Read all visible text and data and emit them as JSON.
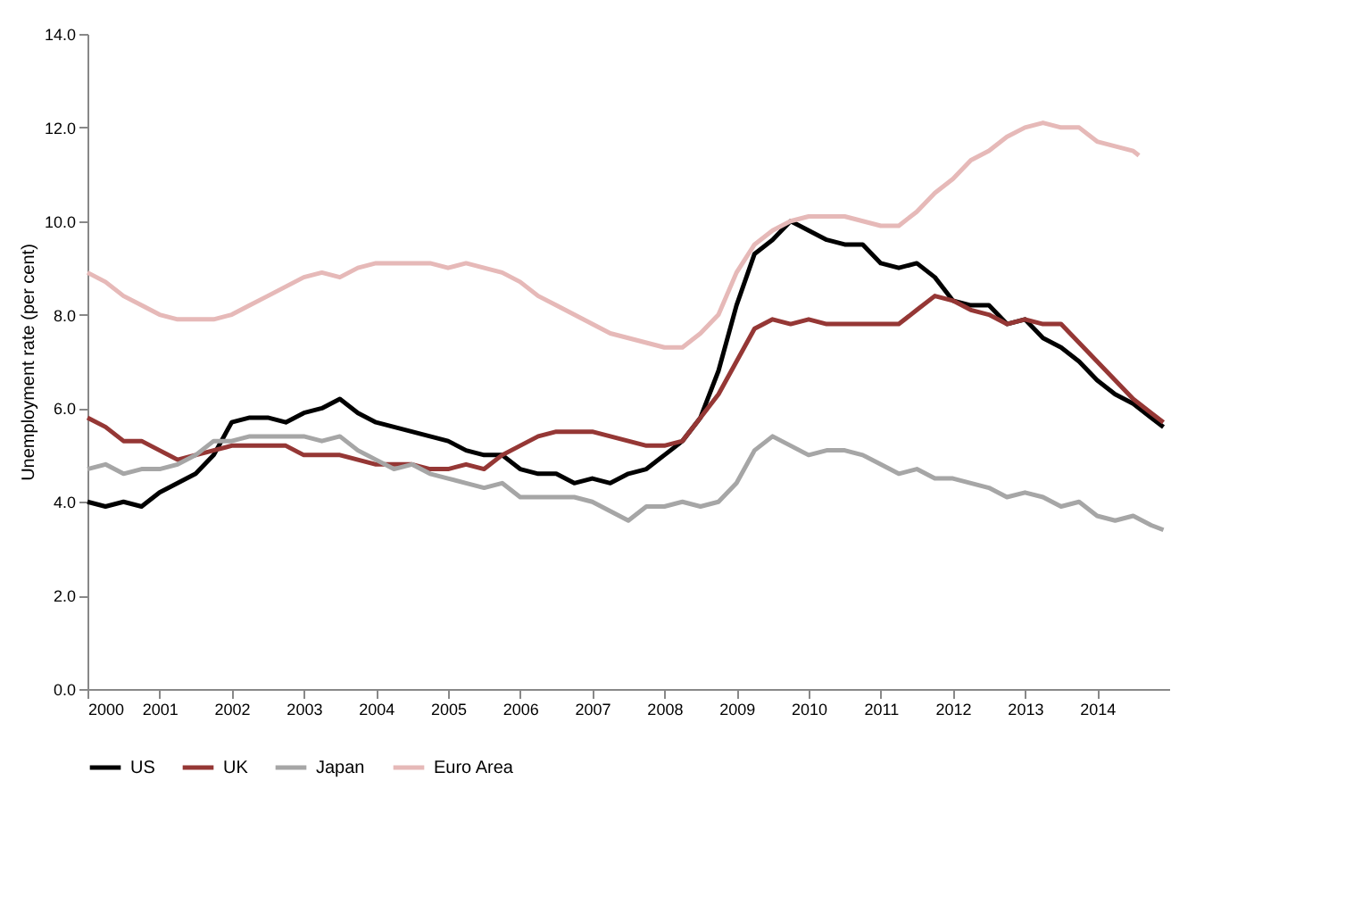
{
  "chart_data": {
    "type": "line",
    "ylabel": "Unemployment rate (per cent)",
    "xlim": [
      2000,
      2015
    ],
    "xticks": [
      2000,
      2001,
      2002,
      2003,
      2004,
      2005,
      2006,
      2007,
      2008,
      2009,
      2010,
      2011,
      2012,
      2013,
      2014
    ],
    "ylim": [
      0,
      14
    ],
    "yticks": [
      {
        "value": 0,
        "label": "0.0"
      },
      {
        "value": 2,
        "label": "2.0"
      },
      {
        "value": 4,
        "label": "4.0"
      },
      {
        "value": 6,
        "label": "6.0"
      },
      {
        "value": 8,
        "label": "8.0"
      },
      {
        "value": 10,
        "label": "10.0"
      },
      {
        "value": 12,
        "label": "12.0"
      },
      {
        "value": 14,
        "label": "14.0"
      }
    ],
    "grid": false,
    "legend": "bottom",
    "marker": "none",
    "line_style": "solid",
    "series": [
      {
        "name": "US",
        "color": "#000000",
        "x": [
          2000,
          2000.25,
          2000.5,
          2000.75,
          2001,
          2001.25,
          2001.5,
          2001.75,
          2002,
          2002.25,
          2002.5,
          2002.75,
          2003,
          2003.25,
          2003.5,
          2003.75,
          2004,
          2004.25,
          2004.5,
          2004.75,
          2005,
          2005.25,
          2005.5,
          2005.75,
          2006,
          2006.25,
          2006.5,
          2006.75,
          2007,
          2007.25,
          2007.5,
          2007.75,
          2008,
          2008.25,
          2008.5,
          2008.75,
          2009,
          2009.25,
          2009.5,
          2009.75,
          2010,
          2010.25,
          2010.5,
          2010.75,
          2011,
          2011.25,
          2011.5,
          2011.75,
          2012,
          2012.25,
          2012.5,
          2012.75,
          2013,
          2013.25,
          2013.5,
          2013.75,
          2014,
          2014.25,
          2014.5,
          2014.75,
          2014.92
        ],
        "values": [
          4.0,
          3.9,
          4.0,
          3.9,
          4.2,
          4.4,
          4.6,
          5.0,
          5.7,
          5.8,
          5.8,
          5.7,
          5.9,
          6.0,
          6.2,
          5.9,
          5.7,
          5.6,
          5.5,
          5.4,
          5.3,
          5.1,
          5.0,
          5.0,
          4.7,
          4.6,
          4.6,
          4.4,
          4.5,
          4.4,
          4.6,
          4.7,
          5.0,
          5.3,
          5.8,
          6.8,
          8.2,
          9.3,
          9.6,
          10.0,
          9.8,
          9.6,
          9.5,
          9.5,
          9.1,
          9.0,
          9.1,
          8.8,
          8.3,
          8.2,
          8.2,
          7.8,
          7.9,
          7.5,
          7.3,
          7.0,
          6.6,
          6.3,
          6.1,
          5.8,
          5.6
        ]
      },
      {
        "name": "UK",
        "color": "#953735",
        "x": [
          2000,
          2000.25,
          2000.5,
          2000.75,
          2001,
          2001.25,
          2001.5,
          2001.75,
          2002,
          2002.25,
          2002.5,
          2002.75,
          2003,
          2003.25,
          2003.5,
          2003.75,
          2004,
          2004.25,
          2004.5,
          2004.75,
          2005,
          2005.25,
          2005.5,
          2005.75,
          2006,
          2006.25,
          2006.5,
          2006.75,
          2007,
          2007.25,
          2007.5,
          2007.75,
          2008,
          2008.25,
          2008.5,
          2008.75,
          2009,
          2009.25,
          2009.5,
          2009.75,
          2010,
          2010.25,
          2010.5,
          2010.75,
          2011,
          2011.25,
          2011.5,
          2011.75,
          2012,
          2012.25,
          2012.5,
          2012.75,
          2013,
          2013.25,
          2013.5,
          2013.75,
          2014,
          2014.25,
          2014.5,
          2014.75,
          2014.92
        ],
        "values": [
          5.8,
          5.6,
          5.3,
          5.3,
          5.1,
          4.9,
          5.0,
          5.1,
          5.2,
          5.2,
          5.2,
          5.2,
          5.0,
          5.0,
          5.0,
          4.9,
          4.8,
          4.8,
          4.8,
          4.7,
          4.7,
          4.8,
          4.7,
          5.0,
          5.2,
          5.4,
          5.5,
          5.5,
          5.5,
          5.4,
          5.3,
          5.2,
          5.2,
          5.3,
          5.8,
          6.3,
          7.0,
          7.7,
          7.9,
          7.8,
          7.9,
          7.8,
          7.8,
          7.8,
          7.8,
          7.8,
          8.1,
          8.4,
          8.3,
          8.1,
          8.0,
          7.8,
          7.9,
          7.8,
          7.8,
          7.4,
          7.0,
          6.6,
          6.2,
          5.9,
          5.7
        ]
      },
      {
        "name": "Japan",
        "color": "#a6a6a6",
        "x": [
          2000,
          2000.25,
          2000.5,
          2000.75,
          2001,
          2001.25,
          2001.5,
          2001.75,
          2002,
          2002.25,
          2002.5,
          2002.75,
          2003,
          2003.25,
          2003.5,
          2003.75,
          2004,
          2004.25,
          2004.5,
          2004.75,
          2005,
          2005.25,
          2005.5,
          2005.75,
          2006,
          2006.25,
          2006.5,
          2006.75,
          2007,
          2007.25,
          2007.5,
          2007.75,
          2008,
          2008.25,
          2008.5,
          2008.75,
          2009,
          2009.25,
          2009.5,
          2009.75,
          2010,
          2010.25,
          2010.5,
          2010.75,
          2011,
          2011.25,
          2011.5,
          2011.75,
          2012,
          2012.25,
          2012.5,
          2012.75,
          2013,
          2013.25,
          2013.5,
          2013.75,
          2014,
          2014.25,
          2014.5,
          2014.75,
          2014.92
        ],
        "values": [
          4.7,
          4.8,
          4.6,
          4.7,
          4.7,
          4.8,
          5.0,
          5.3,
          5.3,
          5.4,
          5.4,
          5.4,
          5.4,
          5.3,
          5.4,
          5.1,
          4.9,
          4.7,
          4.8,
          4.6,
          4.5,
          4.4,
          4.3,
          4.4,
          4.1,
          4.1,
          4.1,
          4.1,
          4.0,
          3.8,
          3.6,
          3.9,
          3.9,
          4.0,
          3.9,
          4.0,
          4.4,
          5.1,
          5.4,
          5.2,
          5.0,
          5.1,
          5.1,
          5.0,
          4.8,
          4.6,
          4.7,
          4.5,
          4.5,
          4.4,
          4.3,
          4.1,
          4.2,
          4.1,
          3.9,
          4.0,
          3.7,
          3.6,
          3.7,
          3.5,
          3.4
        ]
      },
      {
        "name": "Euro Area",
        "color": "#e6b9b8",
        "x": [
          2000,
          2000.25,
          2000.5,
          2000.75,
          2001,
          2001.25,
          2001.5,
          2001.75,
          2002,
          2002.25,
          2002.5,
          2002.75,
          2003,
          2003.25,
          2003.5,
          2003.75,
          2004,
          2004.25,
          2004.5,
          2004.75,
          2005,
          2005.25,
          2005.5,
          2005.75,
          2006,
          2006.25,
          2006.5,
          2006.75,
          2007,
          2007.25,
          2007.5,
          2007.75,
          2008,
          2008.25,
          2008.5,
          2008.75,
          2009,
          2009.25,
          2009.5,
          2009.75,
          2010,
          2010.25,
          2010.5,
          2010.75,
          2011,
          2011.25,
          2011.5,
          2011.75,
          2012,
          2012.25,
          2012.5,
          2012.75,
          2013,
          2013.25,
          2013.5,
          2013.75,
          2014,
          2014.25,
          2014.5,
          2014.58
        ],
        "values": [
          8.9,
          8.7,
          8.4,
          8.2,
          8.0,
          7.9,
          7.9,
          7.9,
          8.0,
          8.2,
          8.4,
          8.6,
          8.8,
          8.9,
          8.8,
          9.0,
          9.1,
          9.1,
          9.1,
          9.1,
          9.0,
          9.1,
          9.0,
          8.9,
          8.7,
          8.4,
          8.2,
          8.0,
          7.8,
          7.6,
          7.5,
          7.4,
          7.3,
          7.3,
          7.6,
          8.0,
          8.9,
          9.5,
          9.8,
          10.0,
          10.1,
          10.1,
          10.1,
          10.0,
          9.9,
          9.9,
          10.2,
          10.6,
          10.9,
          11.3,
          11.5,
          11.8,
          12.0,
          12.1,
          12.0,
          12.0,
          11.7,
          11.6,
          11.5,
          11.4
        ]
      }
    ]
  }
}
